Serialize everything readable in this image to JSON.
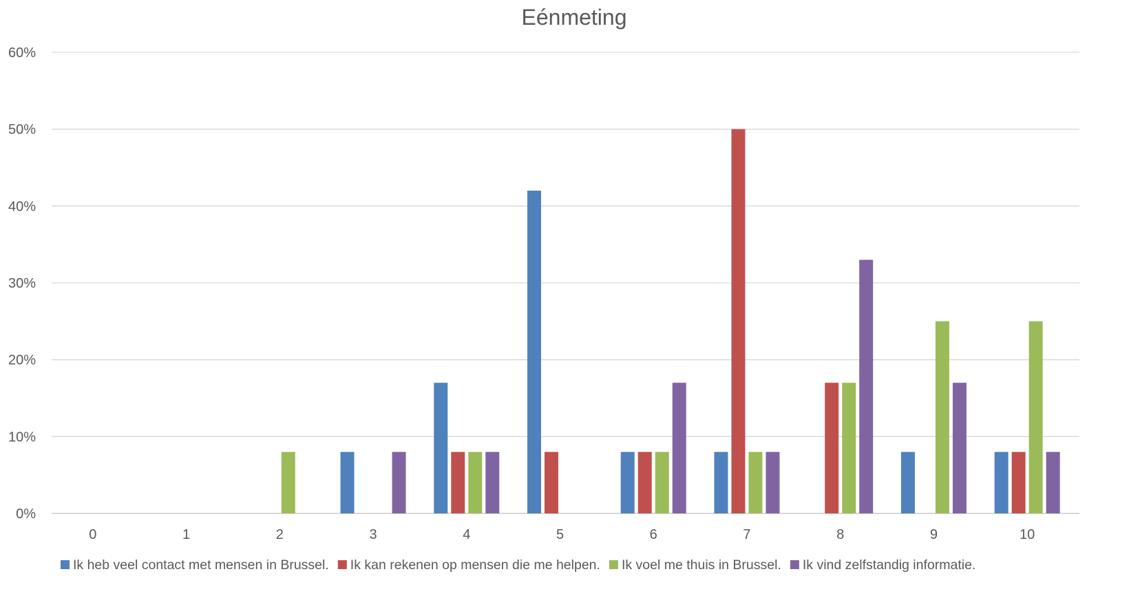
{
  "chart_data": {
    "type": "bar",
    "title": "Eénmeting",
    "xlabel": "",
    "ylabel": "",
    "categories": [
      "0",
      "1",
      "2",
      "3",
      "4",
      "5",
      "6",
      "7",
      "8",
      "9",
      "10"
    ],
    "ylim": [
      0,
      60
    ],
    "yticks": [
      0,
      10,
      20,
      30,
      40,
      50,
      60
    ],
    "ytick_labels": [
      "0%",
      "10%",
      "20%",
      "30%",
      "40%",
      "50%",
      "60%"
    ],
    "grid": true,
    "legend_position": "bottom",
    "series": [
      {
        "name": "Ik heb veel contact met mensen in Brussel.",
        "color": "#4F81BD",
        "values": [
          0,
          0,
          0,
          8,
          17,
          42,
          8,
          8,
          0,
          8,
          8
        ]
      },
      {
        "name": "Ik kan rekenen op mensen die me helpen.",
        "color": "#C0504D",
        "values": [
          0,
          0,
          0,
          0,
          8,
          8,
          8,
          50,
          17,
          0,
          8
        ]
      },
      {
        "name": "Ik voel me thuis in Brussel.",
        "color": "#9BBB59",
        "values": [
          0,
          0,
          8,
          0,
          8,
          0,
          8,
          8,
          17,
          25,
          25
        ]
      },
      {
        "name": "Ik vind zelfstandig informatie.",
        "color": "#8064A2",
        "values": [
          0,
          0,
          0,
          8,
          8,
          0,
          17,
          8,
          33,
          17,
          8
        ]
      }
    ]
  }
}
